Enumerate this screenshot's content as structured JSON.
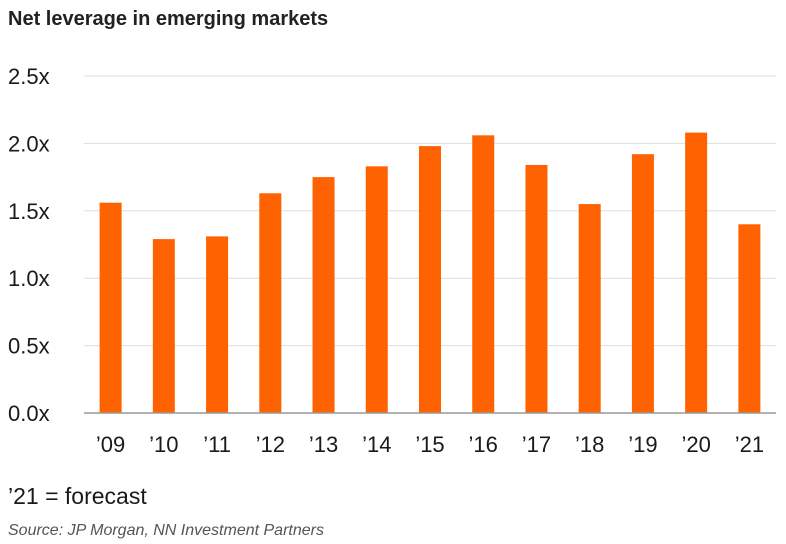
{
  "title": "Net leverage in emerging markets",
  "note": "’21 = forecast",
  "source": "Source: JP Morgan, NN Investment Partners",
  "colors": {
    "bar": "#ff6200",
    "grid": "#dddddd",
    "axis": "#999999"
  },
  "chart_data": {
    "type": "bar",
    "title": "Net leverage in emerging markets",
    "xlabel": "",
    "ylabel": "",
    "categories": [
      "’09",
      "’10",
      "’11",
      "’12",
      "’13",
      "’14",
      "’15",
      "’16",
      "’17",
      "’18",
      "’19",
      "’20",
      "’21"
    ],
    "values": [
      1.56,
      1.29,
      1.31,
      1.63,
      1.75,
      1.83,
      1.98,
      2.06,
      1.84,
      1.55,
      1.92,
      2.08,
      1.4
    ],
    "ylim": [
      0,
      2.5
    ],
    "yticks": [
      "0.0x",
      "0.5x",
      "1.0x",
      "1.5x",
      "2.0x",
      "2.5x"
    ],
    "grid": true,
    "legend": "none"
  }
}
